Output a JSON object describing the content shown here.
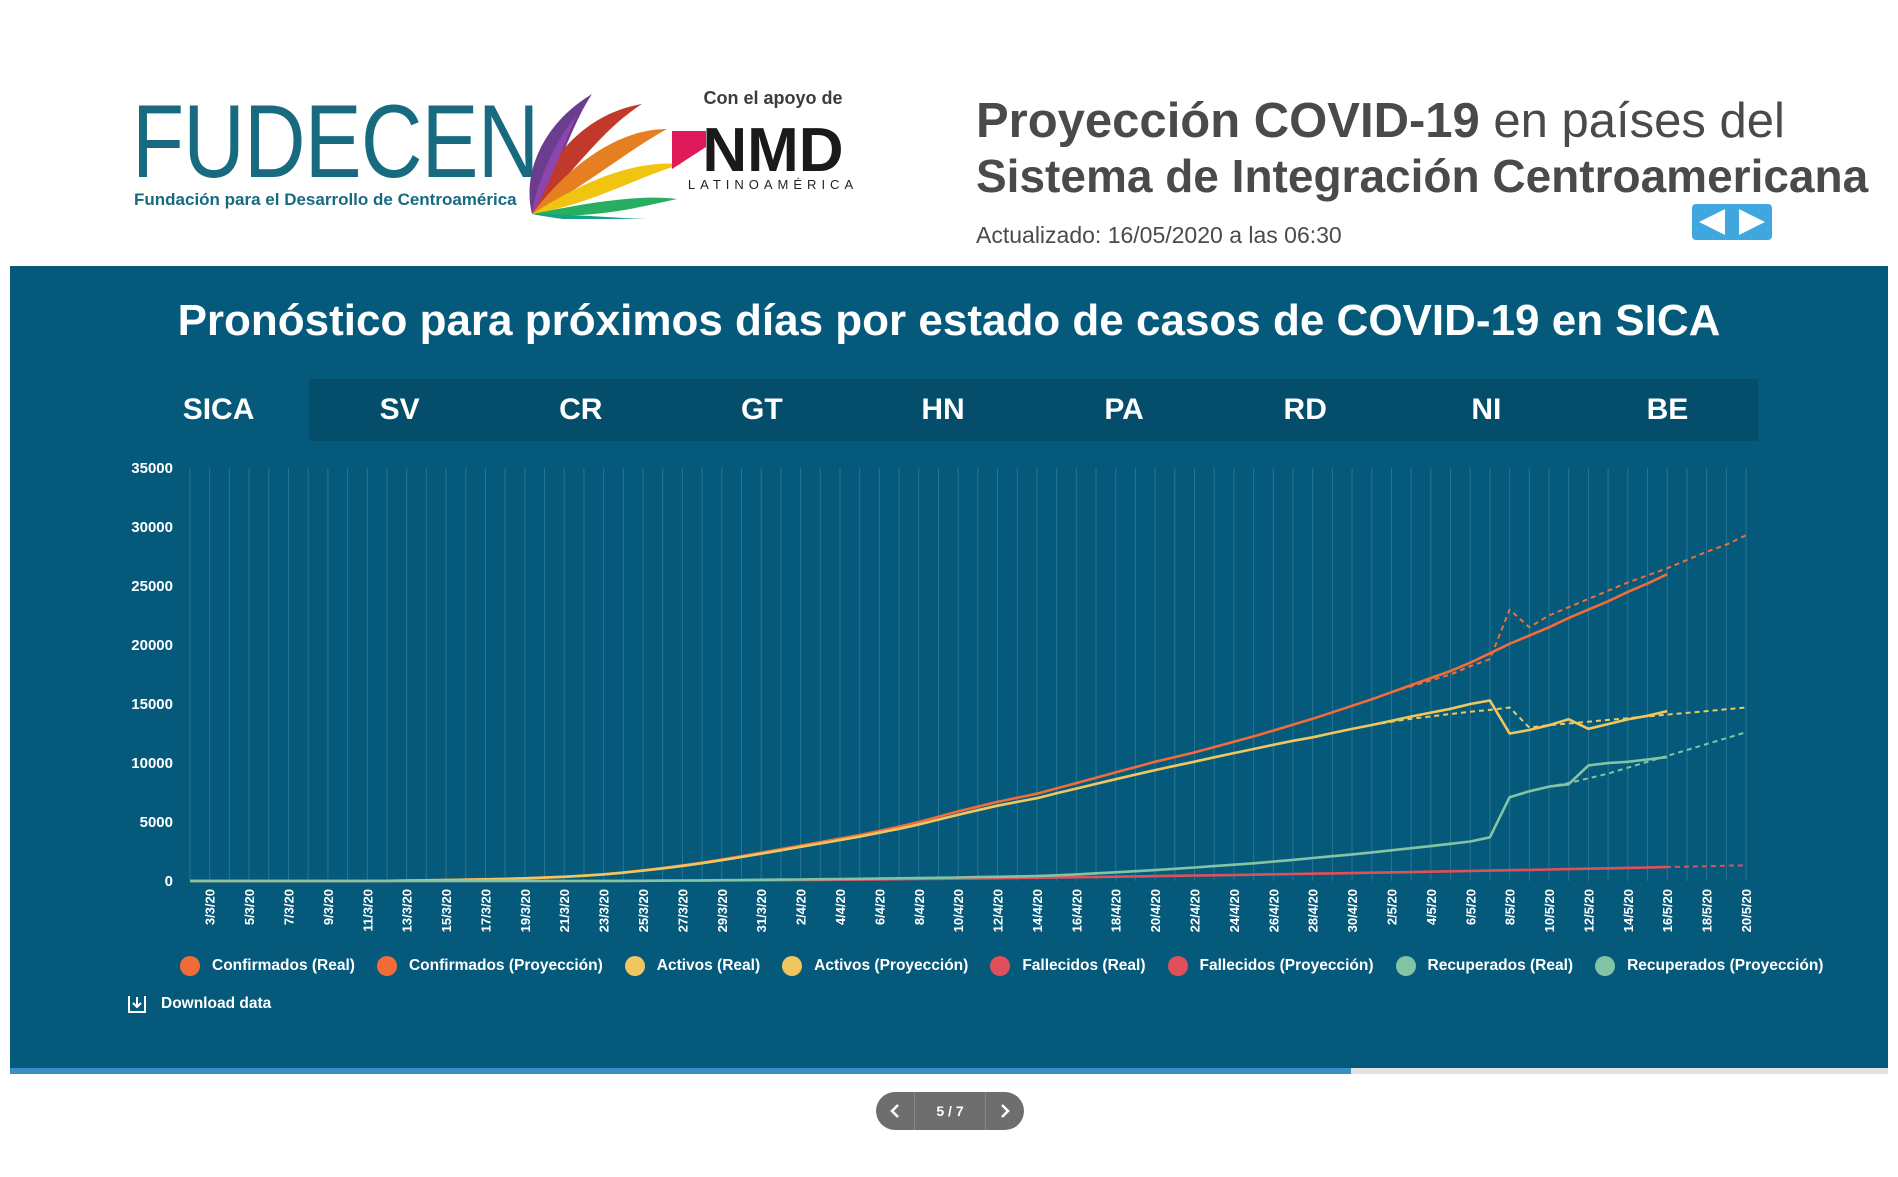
{
  "header": {
    "logo_name": "FUDECEN",
    "logo_subtitle": "Fundación para el Desarrollo de Centroamérica",
    "support_label": "Con el apoyo de",
    "nmd_logo": "NMD",
    "nmd_subtitle": "LATINOAMÉRICA",
    "title_bold": "Proyección COVID-19",
    "title_rest": " en países del",
    "title_line2": "Sistema de Integración Centroamericana",
    "updated": "Actualizado: 16/05/2020 a las 06:30"
  },
  "panel": {
    "title": "Pronóstico para próximos días por estado de casos de COVID-19 en SICA",
    "background": "#055a7c",
    "tabs": [
      "SICA",
      "SV",
      "CR",
      "GT",
      "HN",
      "PA",
      "RD",
      "NI",
      "BE"
    ],
    "active_tab": "SICA",
    "download_label": "Download data"
  },
  "chart_data": {
    "type": "line",
    "title": "",
    "xlabel": "",
    "ylabel": "",
    "ylim": [
      0,
      35000
    ],
    "yticks": [
      0,
      5000,
      10000,
      15000,
      20000,
      25000,
      30000,
      35000
    ],
    "x": [
      "2/3/20",
      "3/3/20",
      "4/3/20",
      "5/3/20",
      "6/3/20",
      "7/3/20",
      "8/3/20",
      "9/3/20",
      "10/3/20",
      "11/3/20",
      "12/3/20",
      "13/3/20",
      "14/3/20",
      "15/3/20",
      "16/3/20",
      "17/3/20",
      "18/3/20",
      "19/3/20",
      "20/3/20",
      "21/3/20",
      "22/3/20",
      "23/3/20",
      "24/3/20",
      "25/3/20",
      "26/3/20",
      "27/3/20",
      "28/3/20",
      "29/3/20",
      "30/3/20",
      "31/3/20",
      "1/4/20",
      "2/4/20",
      "3/4/20",
      "4/4/20",
      "5/4/20",
      "6/4/20",
      "7/4/20",
      "8/4/20",
      "9/4/20",
      "10/4/20",
      "11/4/20",
      "12/4/20",
      "13/4/20",
      "14/4/20",
      "15/4/20",
      "16/4/20",
      "17/4/20",
      "18/4/20",
      "19/4/20",
      "20/4/20",
      "21/4/20",
      "22/4/20",
      "23/4/20",
      "24/4/20",
      "25/4/20",
      "26/4/20",
      "27/4/20",
      "28/4/20",
      "29/4/20",
      "30/4/20",
      "1/5/20",
      "2/5/20",
      "3/5/20",
      "4/5/20",
      "5/5/20",
      "6/5/20",
      "7/5/20",
      "8/5/20",
      "9/5/20",
      "10/5/20",
      "11/5/20",
      "12/5/20",
      "13/5/20",
      "14/5/20",
      "15/5/20",
      "16/5/20",
      "17/5/20",
      "18/5/20",
      "19/5/20",
      "20/5/20"
    ],
    "xtick_labels": [
      "3/3/20",
      "5/3/20",
      "7/3/20",
      "9/3/20",
      "11/3/20",
      "13/3/20",
      "15/3/20",
      "17/3/20",
      "19/3/20",
      "21/3/20",
      "23/3/20",
      "25/3/20",
      "27/3/20",
      "29/3/20",
      "31/3/20",
      "2/4/20",
      "4/4/20",
      "6/4/20",
      "8/4/20",
      "10/4/20",
      "12/4/20",
      "14/4/20",
      "16/4/20",
      "18/4/20",
      "20/4/20",
      "22/4/20",
      "24/4/20",
      "26/4/20",
      "28/4/20",
      "30/4/20",
      "2/5/20",
      "4/5/20",
      "6/5/20",
      "8/5/20",
      "10/5/20",
      "12/5/20",
      "14/5/20",
      "16/5/20",
      "18/5/20",
      "20/5/20"
    ],
    "grid": true,
    "legend_position": "bottom",
    "series": [
      {
        "name": "Confirmados (Real)",
        "color": "#f26c3a",
        "dashed": false,
        "values": [
          0,
          0,
          0,
          0,
          0,
          0,
          0,
          0,
          0,
          0,
          20,
          40,
          60,
          80,
          110,
          140,
          180,
          230,
          290,
          360,
          450,
          570,
          720,
          900,
          1100,
          1320,
          1560,
          1820,
          2100,
          2400,
          2700,
          3000,
          3300,
          3600,
          3900,
          4250,
          4600,
          5000,
          5450,
          5900,
          6300,
          6700,
          7050,
          7400,
          7850,
          8300,
          8750,
          9200,
          9650,
          10100,
          10500,
          10900,
          11350,
          11800,
          12250,
          12750,
          13250,
          13750,
          14300,
          14850,
          15400,
          16000,
          16600,
          17200,
          17800,
          18500,
          19300,
          20100,
          20800,
          21500,
          22300,
          23000,
          23700,
          24500,
          25200,
          26000,
          null,
          null,
          null,
          null
        ]
      },
      {
        "name": "Confirmados (Proyección)",
        "color": "#f26c3a",
        "dashed": true,
        "values": [
          0,
          0,
          0,
          0,
          0,
          0,
          0,
          0,
          0,
          0,
          20,
          40,
          60,
          80,
          110,
          140,
          180,
          230,
          290,
          360,
          450,
          570,
          720,
          900,
          1100,
          1320,
          1560,
          1820,
          2100,
          2400,
          2700,
          3000,
          3300,
          3600,
          3900,
          4250,
          4600,
          5000,
          5450,
          5900,
          6300,
          6700,
          7050,
          7400,
          7850,
          8300,
          8750,
          9200,
          9650,
          10100,
          10500,
          10900,
          11350,
          11800,
          12250,
          12750,
          13250,
          13750,
          14300,
          14850,
          15400,
          16000,
          16500,
          17000,
          17500,
          18200,
          18800,
          23000,
          21500,
          22500,
          23200,
          23900,
          24600,
          25300,
          25900,
          26500,
          27200,
          27900,
          28500,
          29300
        ]
      },
      {
        "name": "Activos (Real)",
        "color": "#f0c75e",
        "dashed": false,
        "values": [
          0,
          0,
          0,
          0,
          0,
          0,
          0,
          0,
          0,
          0,
          20,
          40,
          60,
          80,
          110,
          140,
          180,
          230,
          290,
          360,
          450,
          560,
          700,
          880,
          1070,
          1280,
          1510,
          1760,
          2030,
          2310,
          2600,
          2890,
          3180,
          3470,
          3760,
          4090,
          4420,
          4790,
          5200,
          5620,
          6000,
          6380,
          6700,
          7020,
          7430,
          7830,
          8230,
          8630,
          9020,
          9400,
          9760,
          10110,
          10480,
          10840,
          11190,
          11540,
          11880,
          12180,
          12540,
          12890,
          13220,
          13580,
          13940,
          14270,
          14590,
          15000,
          15300,
          12500,
          12800,
          13200,
          13700,
          12900,
          13300,
          13700,
          14000,
          14400,
          null,
          null,
          null,
          null
        ]
      },
      {
        "name": "Activos (Proyección)",
        "color": "#f0c75e",
        "dashed": true,
        "values": [
          0,
          0,
          0,
          0,
          0,
          0,
          0,
          0,
          0,
          0,
          20,
          40,
          60,
          80,
          110,
          140,
          180,
          230,
          290,
          360,
          450,
          560,
          700,
          880,
          1070,
          1280,
          1510,
          1760,
          2030,
          2310,
          2600,
          2890,
          3180,
          3470,
          3760,
          4090,
          4420,
          4790,
          5200,
          5620,
          6000,
          6380,
          6700,
          7020,
          7430,
          7830,
          8230,
          8630,
          9020,
          9400,
          9760,
          10110,
          10480,
          10840,
          11190,
          11540,
          11880,
          12180,
          12540,
          12890,
          13220,
          13500,
          13750,
          13950,
          14150,
          14350,
          14500,
          14700,
          13000,
          13200,
          13350,
          13500,
          13650,
          13800,
          13950,
          14100,
          14250,
          14400,
          14550,
          14700
        ]
      },
      {
        "name": "Fallecidos (Real)",
        "color": "#e0505a",
        "dashed": false,
        "values": [
          0,
          0,
          0,
          0,
          0,
          0,
          0,
          0,
          0,
          0,
          0,
          0,
          0,
          1,
          1,
          2,
          3,
          4,
          5,
          6,
          8,
          10,
          13,
          17,
          22,
          28,
          35,
          43,
          52,
          62,
          72,
          83,
          95,
          108,
          122,
          137,
          152,
          168,
          185,
          203,
          221,
          240,
          259,
          279,
          300,
          321,
          343,
          366,
          390,
          414,
          438,
          462,
          487,
          512,
          538,
          564,
          590,
          617,
          644,
          672,
          700,
          729,
          758,
          788,
          818,
          849,
          880,
          912,
          944,
          977,
          1010,
          1044,
          1078,
          1113,
          1148,
          1184,
          null,
          null,
          null,
          null
        ]
      },
      {
        "name": "Fallecidos (Proyección)",
        "color": "#e0505a",
        "dashed": true,
        "values": [
          0,
          0,
          0,
          0,
          0,
          0,
          0,
          0,
          0,
          0,
          0,
          0,
          0,
          1,
          1,
          2,
          3,
          4,
          5,
          6,
          8,
          10,
          13,
          17,
          22,
          28,
          35,
          43,
          52,
          62,
          72,
          83,
          95,
          108,
          122,
          137,
          152,
          168,
          185,
          203,
          221,
          240,
          259,
          279,
          300,
          321,
          343,
          366,
          390,
          414,
          438,
          462,
          487,
          512,
          538,
          564,
          590,
          617,
          644,
          672,
          700,
          729,
          758,
          788,
          818,
          849,
          880,
          912,
          944,
          977,
          1010,
          1044,
          1078,
          1113,
          1148,
          1184,
          1220,
          1257,
          1294,
          1332
        ]
      },
      {
        "name": "Recuperados (Real)",
        "color": "#82c4a4",
        "dashed": false,
        "values": [
          0,
          0,
          0,
          0,
          0,
          0,
          0,
          0,
          0,
          0,
          0,
          0,
          0,
          0,
          0,
          0,
          0,
          0,
          0,
          0,
          0,
          5,
          10,
          20,
          30,
          40,
          55,
          70,
          85,
          100,
          115,
          130,
          150,
          170,
          190,
          210,
          230,
          250,
          270,
          300,
          330,
          360,
          390,
          420,
          480,
          560,
          650,
          740,
          830,
          920,
          1030,
          1140,
          1260,
          1380,
          1500,
          1640,
          1790,
          1950,
          2100,
          2250,
          2420,
          2600,
          2780,
          2960,
          3150,
          3350,
          3700,
          7100,
          7600,
          8000,
          8200,
          9800,
          10000,
          10100,
          10300,
          10500,
          null,
          null,
          null,
          null
        ]
      },
      {
        "name": "Recuperados (Proyección)",
        "color": "#82c4a4",
        "dashed": true,
        "values": [
          0,
          0,
          0,
          0,
          0,
          0,
          0,
          0,
          0,
          0,
          0,
          0,
          0,
          0,
          0,
          0,
          0,
          0,
          0,
          0,
          0,
          5,
          10,
          20,
          30,
          40,
          55,
          70,
          85,
          100,
          115,
          130,
          150,
          170,
          190,
          210,
          230,
          250,
          270,
          300,
          330,
          360,
          390,
          420,
          480,
          560,
          650,
          740,
          830,
          920,
          1030,
          1140,
          1260,
          1380,
          1500,
          1640,
          1790,
          1950,
          2100,
          2250,
          2420,
          2600,
          2780,
          2960,
          3150,
          3350,
          3700,
          7100,
          7600,
          8000,
          8300,
          8700,
          9100,
          9600,
          10100,
          10600,
          11100,
          11600,
          12100,
          12600
        ]
      }
    ]
  },
  "pager": {
    "label": "5 / 7",
    "progress_fraction": 0.714
  }
}
